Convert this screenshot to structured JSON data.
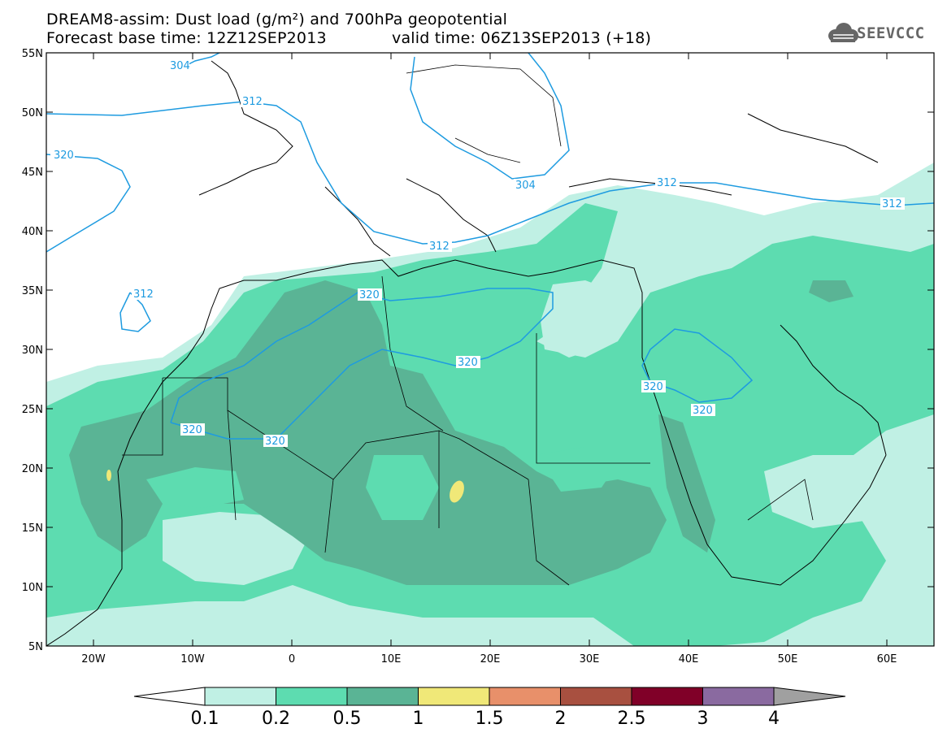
{
  "title": {
    "line1": "DREAM8-assim: Dust load (g/m²) and 700hPa geopotential",
    "line2_left": "Forecast base time: 12Z12SEP2013",
    "line2_right": "valid time: 06Z13SEP2013 (+18)"
  },
  "logo": {
    "text": "SEEVCCC",
    "icon": "cloud-icon"
  },
  "axes": {
    "lat_labels": [
      "55N",
      "50N",
      "45N",
      "40N",
      "35N",
      "30N",
      "25N",
      "20N",
      "15N",
      "10N",
      "5N"
    ],
    "lon_labels": [
      "20W",
      "10W",
      "0",
      "10E",
      "20E",
      "30E",
      "40E",
      "50E",
      "60E"
    ]
  },
  "contours": {
    "labels": [
      "304",
      "312",
      "320",
      "312",
      "304",
      "312",
      "312",
      "320",
      "320",
      "320",
      "320",
      "320",
      "320",
      "312"
    ]
  },
  "colorbar": {
    "levels": [
      "0.1",
      "0.2",
      "0.5",
      "1",
      "1.5",
      "2",
      "2.5",
      "3",
      "4"
    ],
    "colors": [
      "#ffffff",
      "#c0f0e4",
      "#5ddcb0",
      "#5ab495",
      "#f0e878",
      "#e8906a",
      "#a85040",
      "#800028",
      "#8a6aa0",
      "#a0a0a0"
    ]
  }
}
